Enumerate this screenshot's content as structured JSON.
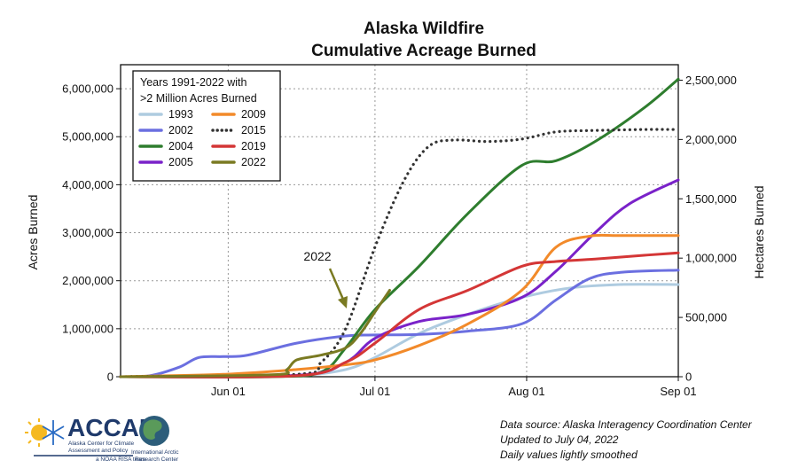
{
  "chart_data": {
    "type": "line",
    "title": [
      "Alaska Wildfire",
      "Cumulative Acreage Burned"
    ],
    "ylabel": "Acres Burned",
    "ylabel_right": "Hectares Burned",
    "x_ticks": [
      "Jun 01",
      "Jul 01",
      "Aug 01",
      "Sep 01"
    ],
    "x_range": [
      "May 10",
      "Sep 01"
    ],
    "ylim": [
      0,
      6500000
    ],
    "yticks": [
      "0",
      "1,000,000",
      "2,000,000",
      "3,000,000",
      "4,000,000",
      "5,000,000",
      "6,000,000"
    ],
    "yticks_right": [
      "0",
      "500,000",
      "1,000,000",
      "1,500,000",
      "2,000,000",
      "2,500,000"
    ],
    "grid": "dotted",
    "legend_title": [
      "Years 1991-2022 with",
      ">2 Million Acres Burned"
    ],
    "legend_position": "top-left",
    "series": [
      {
        "name": "1993",
        "color": "#aecbe0",
        "dash": "solid",
        "x": [
          "May 10",
          "May 31",
          "Jun 15",
          "Jun 25",
          "Jul 01",
          "Jul 10",
          "Jul 20",
          "Jul 31",
          "Aug 10",
          "Aug 20",
          "Sep 01"
        ],
        "y": [
          0,
          0,
          20000,
          150000,
          400000,
          900000,
          1300000,
          1650000,
          1850000,
          1920000,
          1920000
        ]
      },
      {
        "name": "2002",
        "color": "#6b6fe0",
        "dash": "solid",
        "x": [
          "May 10",
          "May 16",
          "May 22",
          "May 26",
          "May 31",
          "Jun 05",
          "Jun 15",
          "Jun 25",
          "Jul 01",
          "Jul 10",
          "Jul 20",
          "Jul 31",
          "Aug 07",
          "Aug 14",
          "Aug 21",
          "Sep 01"
        ],
        "y": [
          0,
          20000,
          200000,
          400000,
          420000,
          450000,
          700000,
          850000,
          870000,
          880000,
          950000,
          1100000,
          1600000,
          2050000,
          2180000,
          2220000
        ]
      },
      {
        "name": "2004",
        "color": "#2e7d2e",
        "dash": "solid",
        "x": [
          "May 10",
          "Jun 10",
          "Jun 20",
          "Jun 25",
          "Jul 01",
          "Jul 10",
          "Jul 20",
          "Jul 31",
          "Aug 07",
          "Aug 15",
          "Aug 25",
          "Sep 01"
        ],
        "y": [
          0,
          0,
          100000,
          600000,
          1400000,
          2300000,
          3400000,
          4400000,
          4500000,
          4900000,
          5600000,
          6200000
        ]
      },
      {
        "name": "2005",
        "color": "#7a22c9",
        "dash": "solid",
        "x": [
          "May 10",
          "Jun 15",
          "Jun 25",
          "Jul 01",
          "Jul 10",
          "Jul 20",
          "Jul 31",
          "Aug 07",
          "Aug 15",
          "Aug 22",
          "Sep 01"
        ],
        "y": [
          0,
          30000,
          300000,
          800000,
          1150000,
          1300000,
          1650000,
          2200000,
          3000000,
          3600000,
          4100000
        ]
      },
      {
        "name": "2009",
        "color": "#f28a2a",
        "dash": "solid",
        "x": [
          "May 10",
          "May 31",
          "Jun 15",
          "Jun 25",
          "Jul 01",
          "Jul 10",
          "Jul 20",
          "Jul 31",
          "Aug 07",
          "Aug 14",
          "Aug 20",
          "Sep 01"
        ],
        "y": [
          0,
          50000,
          150000,
          250000,
          350000,
          650000,
          1100000,
          1800000,
          2700000,
          2930000,
          2940000,
          2940000
        ]
      },
      {
        "name": "2015",
        "color": "#333333",
        "dash": "dotted",
        "x": [
          "May 10",
          "Jun 15",
          "Jun 20",
          "Jun 25",
          "Jul 01",
          "Jul 07",
          "Jul 12",
          "Jul 17",
          "Jul 24",
          "Jul 31",
          "Aug 07",
          "Aug 15",
          "Aug 25",
          "Sep 01"
        ],
        "y": [
          0,
          50000,
          300000,
          1000000,
          2700000,
          4100000,
          4800000,
          4930000,
          4900000,
          4950000,
          5100000,
          5130000,
          5150000,
          5150000
        ]
      },
      {
        "name": "2019",
        "color": "#d43636",
        "dash": "solid",
        "x": [
          "May 10",
          "Jun 15",
          "Jun 25",
          "Jul 01",
          "Jul 10",
          "Jul 20",
          "Jul 31",
          "Aug 07",
          "Aug 15",
          "Aug 25",
          "Sep 01"
        ],
        "y": [
          0,
          20000,
          300000,
          700000,
          1400000,
          1800000,
          2300000,
          2400000,
          2450000,
          2530000,
          2580000
        ]
      },
      {
        "name": "2022",
        "color": "#7a7a22",
        "dash": "solid",
        "x": [
          "May 10",
          "Jun 10",
          "Jun 13",
          "Jun 15",
          "Jun 20",
          "Jun 25",
          "Jun 28",
          "Jul 01",
          "Jul 04"
        ],
        "y": [
          0,
          40000,
          150000,
          350000,
          450000,
          600000,
          900000,
          1350000,
          1800000
        ]
      }
    ],
    "annotation": {
      "text": "2022",
      "target": "2022"
    }
  },
  "source_note": [
    "Data source: Alaska Interagency Coordination Center",
    "Updated to July 04, 2022",
    "Daily values lightly smoothed"
  ],
  "logos": {
    "accap_name": "ACCAP",
    "accap_sub1": "Alaska Center for Climate",
    "accap_sub2": "Assessment and Policy",
    "accap_sub3": "a NOAA RISA team",
    "iarc_line1": "International Arctic",
    "iarc_line2": "Research Center"
  }
}
